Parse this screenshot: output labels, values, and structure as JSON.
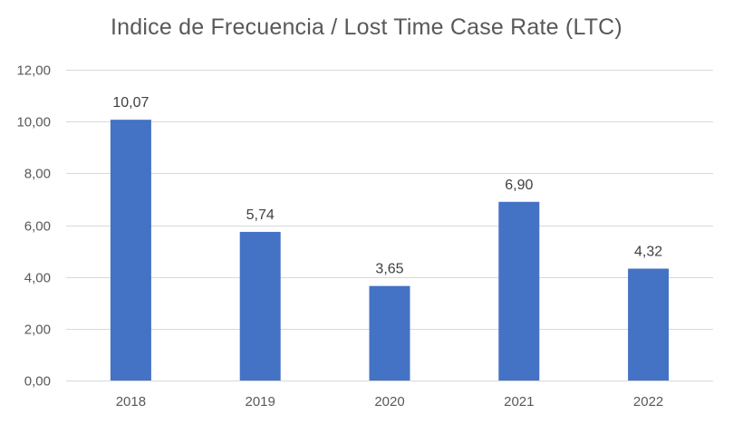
{
  "colors": {
    "bar": "#4472C4",
    "grid": "#D9D9D9",
    "axis_text": "#595959",
    "title_text": "#595959",
    "data_label_text": "#404040",
    "background": "#FFFFFF"
  },
  "chart_data": {
    "type": "bar",
    "title": "Indice de Frecuencia / Lost Time Case Rate (LTC)",
    "xlabel": "",
    "ylabel": "",
    "categories": [
      "2018",
      "2019",
      "2020",
      "2021",
      "2022"
    ],
    "values": [
      10.07,
      5.74,
      3.65,
      6.9,
      4.32
    ],
    "data_labels": [
      "10,07",
      "5,74",
      "3,65",
      "6,90",
      "4,32"
    ],
    "ylim": [
      0,
      12
    ],
    "yticks": [
      0,
      2,
      4,
      6,
      8,
      10,
      12
    ],
    "ytick_labels": [
      "0,00",
      "2,00",
      "4,00",
      "6,00",
      "8,00",
      "10,00",
      "12,00"
    ],
    "grid": true,
    "legend": "none"
  }
}
